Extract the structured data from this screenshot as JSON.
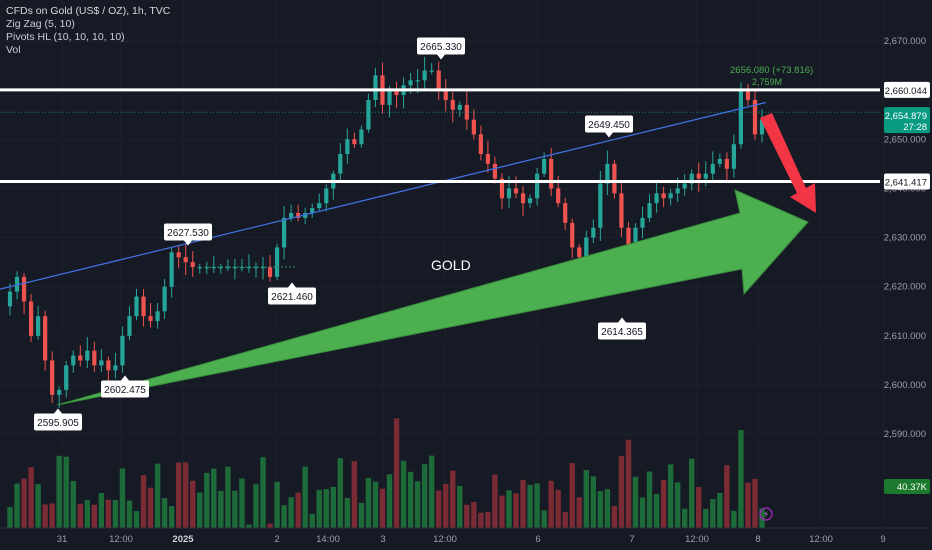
{
  "legend": {
    "title": "CFDs on Gold (US$ / OZ), 1h, TVC",
    "zigzag": "Zig Zag (5, 10)",
    "pivots": "Pivots HL (10, 10, 10, 10)",
    "vol": "Vol"
  },
  "colors": {
    "background": "#161a25",
    "up": "#26a69a",
    "down": "#ef5350",
    "vol_up": "#1e6b3a",
    "vol_down": "#7a2b33",
    "trendline": "#3f6fe0",
    "big_arrow": "#4caf50",
    "red_arrow": "#f23645",
    "hline": "#ffffff"
  },
  "annotation_text": "GOLD",
  "chart_data": {
    "type": "candlestick",
    "symbol": "CFDs on Gold (US$ / OZ)",
    "timeframe": "1h",
    "x_tick_labels": [
      "31",
      "12:00",
      "2025",
      "2",
      "14:00",
      "3",
      "12:00",
      "6",
      "7",
      "12:00",
      "8",
      "12:00",
      "9"
    ],
    "y_tick_labels": [
      "2,670.000",
      "2,650.000",
      "2,640.000",
      "2,630.000",
      "2,620.000",
      "2,610.000",
      "2,600.000",
      "2,590.000"
    ],
    "ylim": [
      2583,
      2676
    ],
    "last_price": "2,654.879",
    "countdown": "27:28",
    "horizontal_levels": [
      {
        "label": "2,660.044",
        "value": 2660.044
      },
      {
        "label": "2,641.417",
        "value": 2641.417
      }
    ],
    "volume_label": "40.37K",
    "high_label": "2656.080 (+73.816)",
    "high_sublabel": "2,759M",
    "pivot_labels": [
      {
        "label": "2595.905",
        "value": 2595.905
      },
      {
        "label": "2602.475",
        "value": 2602.475
      },
      {
        "label": "2627.530",
        "value": 2627.53
      },
      {
        "label": "2621.460",
        "value": 2621.46
      },
      {
        "label": "2665.330",
        "value": 2665.33
      },
      {
        "label": "2649.450",
        "value": 2649.45
      },
      {
        "label": "2614.365",
        "value": 2614.365
      }
    ],
    "close_path": [
      2619,
      2622,
      2617,
      2610,
      2614,
      2605,
      2598,
      2599,
      2604,
      2606,
      2605,
      2607,
      2604,
      2605,
      2603,
      2604,
      2610,
      2614,
      2618,
      2614,
      2613,
      2615,
      2620,
      2627,
      2626,
      2625,
      2624,
      2624,
      2624,
      2624,
      2624,
      2624,
      2624,
      2624,
      2624,
      2624,
      2624,
      2622,
      2628,
      2634,
      2635,
      2634,
      2635,
      2636,
      2637,
      2640,
      2643,
      2647,
      2650,
      2649,
      2652,
      2658,
      2663,
      2657,
      2660,
      2659,
      2661,
      2662,
      2662,
      2664,
      2664,
      2660,
      2658,
      2656,
      2657,
      2654,
      2651,
      2647,
      2645,
      2642,
      2638,
      2640,
      2639,
      2637,
      2638,
      2643,
      2646,
      2640,
      2637,
      2633,
      2628,
      2626,
      2630,
      2632,
      2641,
      2645,
      2639,
      2632,
      2624,
      2632,
      2634,
      2637,
      2639,
      2638,
      2639,
      2640,
      2641,
      2643,
      2642,
      2643,
      2645,
      2646,
      2644,
      2649,
      2660,
      2658,
      2651,
      2654
    ]
  }
}
